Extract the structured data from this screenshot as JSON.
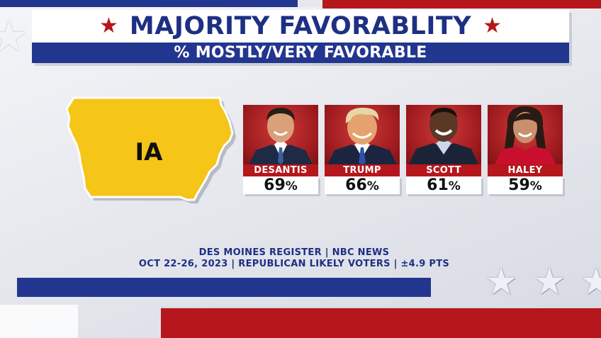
{
  "header": {
    "title": "MAJORITY FAVORABLITY",
    "subtitle": "% MOSTLY/VERY FAVORABLE",
    "star_glyph": "★"
  },
  "state": {
    "abbr": "IA",
    "map_color": "#f5c518",
    "map_icon": "iowa-state-outline"
  },
  "candidates": [
    {
      "name": "DESANTIS",
      "percent": "69",
      "suffix": "%"
    },
    {
      "name": "TRUMP",
      "percent": "66",
      "suffix": "%"
    },
    {
      "name": "SCOTT",
      "percent": "61",
      "suffix": "%"
    },
    {
      "name": "HALEY",
      "percent": "59",
      "suffix": "%"
    }
  ],
  "source": {
    "line1": "DES MOINES REGISTER | NBC NEWS",
    "line2": "OCT 22-26, 2023 | REPUBLICAN LIKELY VOTERS | ±4.9 PTS"
  },
  "colors": {
    "navy": "#23368f",
    "red": "#b5171c",
    "title_text": "#1e2f84"
  }
}
